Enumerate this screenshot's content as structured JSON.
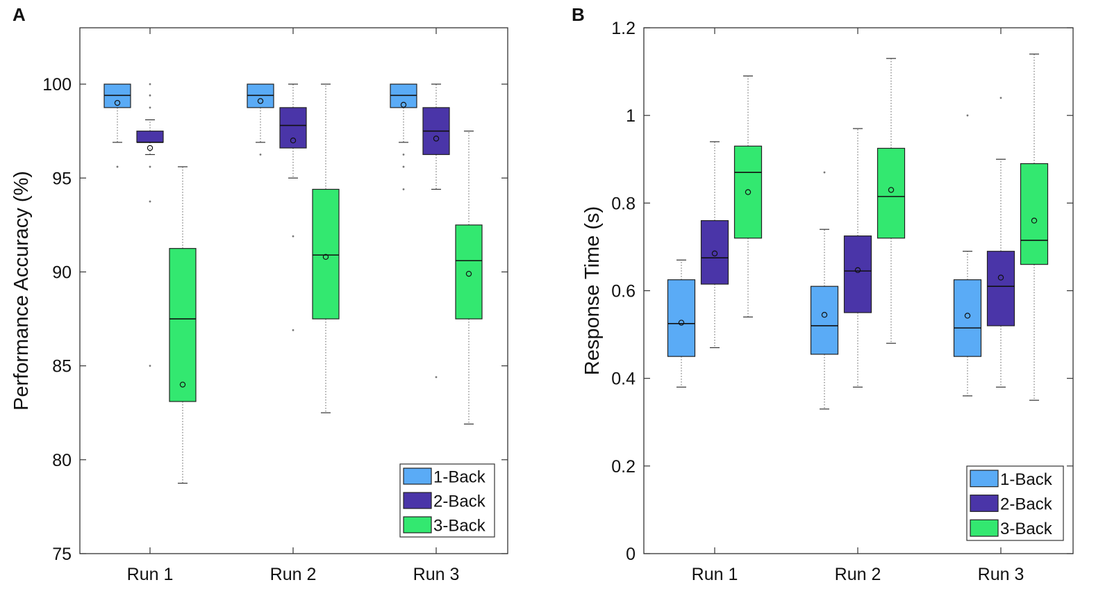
{
  "colors": {
    "1-Back": "#5aabf6",
    "2-Back": "#4a35a8",
    "3-Back": "#33e870"
  },
  "chart_data": [
    {
      "type": "box",
      "panel_label": "A",
      "title": "",
      "xlabel": "",
      "ylabel": "Performance Accuracy (%)",
      "ylim": [
        75,
        103
      ],
      "yticks": [
        75,
        80,
        85,
        90,
        95,
        100
      ],
      "ytick_labels": [
        "75",
        "80",
        "85",
        "90",
        "95",
        "100"
      ],
      "categories": [
        "Run 1",
        "Run 2",
        "Run 3"
      ],
      "legend": {
        "position": "bottom-right",
        "entries": [
          "1-Back",
          "2-Back",
          "3-Back"
        ]
      },
      "series": [
        {
          "name": "1-Back",
          "boxes": [
            {
              "category": "Run 1",
              "whisker_low": 96.9,
              "q1": 98.75,
              "median": 99.4,
              "q3": 100,
              "whisker_high": 100,
              "mean": 99.0,
              "outliers": [
                95.6
              ]
            },
            {
              "category": "Run 2",
              "whisker_low": 96.9,
              "q1": 98.75,
              "median": 99.4,
              "q3": 100,
              "whisker_high": 100,
              "mean": 99.1,
              "outliers": [
                96.25
              ]
            },
            {
              "category": "Run 3",
              "whisker_low": 96.9,
              "q1": 98.75,
              "median": 99.4,
              "q3": 100,
              "whisker_high": 100,
              "mean": 98.9,
              "outliers": [
                96.25,
                95.6,
                94.4
              ]
            }
          ]
        },
        {
          "name": "2-Back",
          "boxes": [
            {
              "category": "Run 1",
              "whisker_low": 96.25,
              "q1": 96.9,
              "median": 96.9,
              "q3": 97.5,
              "whisker_high": 98.1,
              "mean": 96.6,
              "outliers": [
                100,
                99.4,
                98.75,
                95.6,
                93.75,
                85.0
              ]
            },
            {
              "category": "Run 2",
              "whisker_low": 95.0,
              "q1": 96.6,
              "median": 97.8,
              "q3": 98.75,
              "whisker_high": 100,
              "mean": 97.0,
              "outliers": [
                91.9,
                86.9
              ]
            },
            {
              "category": "Run 3",
              "whisker_low": 94.4,
              "q1": 96.25,
              "median": 97.5,
              "q3": 98.75,
              "whisker_high": 100,
              "mean": 97.1,
              "outliers": [
                84.4
              ]
            }
          ]
        },
        {
          "name": "3-Back",
          "boxes": [
            {
              "category": "Run 1",
              "whisker_low": 78.75,
              "q1": 83.1,
              "median": 87.5,
              "q3": 91.25,
              "whisker_high": 95.6,
              "mean": 84.0,
              "outliers": []
            },
            {
              "category": "Run 2",
              "whisker_low": 82.5,
              "q1": 87.5,
              "median": 90.9,
              "q3": 94.4,
              "whisker_high": 100,
              "mean": 90.8,
              "outliers": []
            },
            {
              "category": "Run 3",
              "whisker_low": 81.9,
              "q1": 87.5,
              "median": 90.6,
              "q3": 92.5,
              "whisker_high": 97.5,
              "mean": 89.9,
              "outliers": []
            }
          ]
        }
      ]
    },
    {
      "type": "box",
      "panel_label": "B",
      "title": "",
      "xlabel": "",
      "ylabel": "Response Time (s)",
      "ylim": [
        0,
        1.2
      ],
      "yticks": [
        0,
        0.2,
        0.4,
        0.6,
        0.8,
        1,
        1.2
      ],
      "ytick_labels": [
        "0",
        "0.2",
        "0.4",
        "0.6",
        "0.8",
        "1",
        "1.2"
      ],
      "categories": [
        "Run 1",
        "Run 2",
        "Run 3"
      ],
      "legend": {
        "position": "bottom-right",
        "entries": [
          "1-Back",
          "2-Back",
          "3-Back"
        ]
      },
      "series": [
        {
          "name": "1-Back",
          "boxes": [
            {
              "category": "Run 1",
              "whisker_low": 0.38,
              "q1": 0.45,
              "median": 0.525,
              "q3": 0.625,
              "whisker_high": 0.67,
              "mean": 0.527,
              "outliers": []
            },
            {
              "category": "Run 2",
              "whisker_low": 0.33,
              "q1": 0.455,
              "median": 0.52,
              "q3": 0.61,
              "whisker_high": 0.74,
              "mean": 0.545,
              "outliers": [
                0.87
              ]
            },
            {
              "category": "Run 3",
              "whisker_low": 0.36,
              "q1": 0.45,
              "median": 0.515,
              "q3": 0.625,
              "whisker_high": 0.69,
              "mean": 0.543,
              "outliers": [
                1.0
              ]
            }
          ]
        },
        {
          "name": "2-Back",
          "boxes": [
            {
              "category": "Run 1",
              "whisker_low": 0.47,
              "q1": 0.615,
              "median": 0.675,
              "q3": 0.76,
              "whisker_high": 0.94,
              "mean": 0.685,
              "outliers": []
            },
            {
              "category": "Run 2",
              "whisker_low": 0.38,
              "q1": 0.55,
              "median": 0.645,
              "q3": 0.725,
              "whisker_high": 0.97,
              "mean": 0.647,
              "outliers": []
            },
            {
              "category": "Run 3",
              "whisker_low": 0.38,
              "q1": 0.52,
              "median": 0.61,
              "q3": 0.69,
              "whisker_high": 0.9,
              "mean": 0.63,
              "outliers": [
                1.04
              ]
            }
          ]
        },
        {
          "name": "3-Back",
          "boxes": [
            {
              "category": "Run 1",
              "whisker_low": 0.54,
              "q1": 0.72,
              "median": 0.87,
              "q3": 0.93,
              "whisker_high": 1.09,
              "mean": 0.825,
              "outliers": []
            },
            {
              "category": "Run 2",
              "whisker_low": 0.48,
              "q1": 0.72,
              "median": 0.815,
              "q3": 0.925,
              "whisker_high": 1.13,
              "mean": 0.83,
              "outliers": []
            },
            {
              "category": "Run 3",
              "whisker_low": 0.35,
              "q1": 0.66,
              "median": 0.715,
              "q3": 0.89,
              "whisker_high": 1.14,
              "mean": 0.76,
              "outliers": []
            }
          ]
        }
      ]
    }
  ]
}
